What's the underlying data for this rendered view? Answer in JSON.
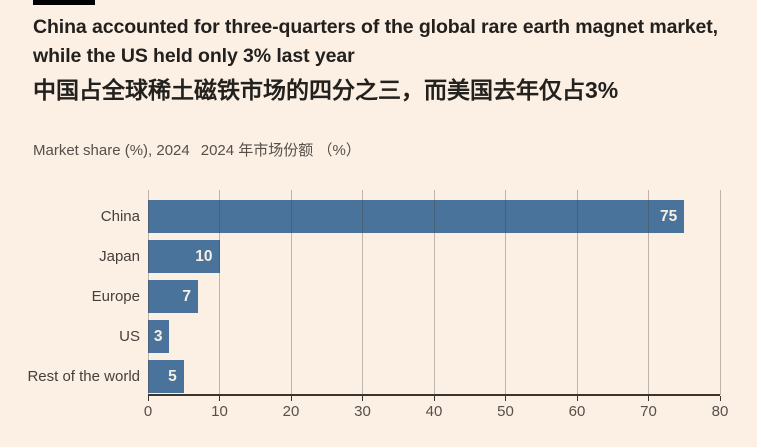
{
  "page": {
    "background": "#FCEFE4",
    "accent_color": "#000000"
  },
  "header": {
    "title_en": "China accounted for three-quarters of the global rare earth magnet market, while the US held only 3% last year",
    "title_zh": "中国占全球稀土磁铁市场的四分之三，而美国去年仅占3%",
    "subtitle_en": "Market share (%), 2024",
    "subtitle_zh": "2024 年市场份额 （%）"
  },
  "chart_data": {
    "type": "bar",
    "orientation": "horizontal",
    "title": "China accounted for three-quarters of the global rare earth magnet market, while the US held only 3% last year",
    "title_zh": "中国占全球稀土磁铁市场的四分之三，而美国去年仅占3%",
    "subtitle": "Market share (%), 2024  2024 年市场份额 （%）",
    "categories": [
      "China",
      "Japan",
      "Europe",
      "US",
      "Rest of the world"
    ],
    "values": [
      75,
      10,
      7,
      3,
      5
    ],
    "xlabel": "Market share (%)",
    "ylabel": "",
    "xlim": [
      0,
      80
    ],
    "xticks": [
      0,
      10,
      20,
      30,
      40,
      50,
      60,
      70,
      80
    ],
    "grid": true,
    "legend": false,
    "bar_color": "#4A739B",
    "value_label_color": "#F6EFE5",
    "gridline_color": "rgba(70,58,48,0.33)",
    "axis_color": "#3B3530"
  }
}
